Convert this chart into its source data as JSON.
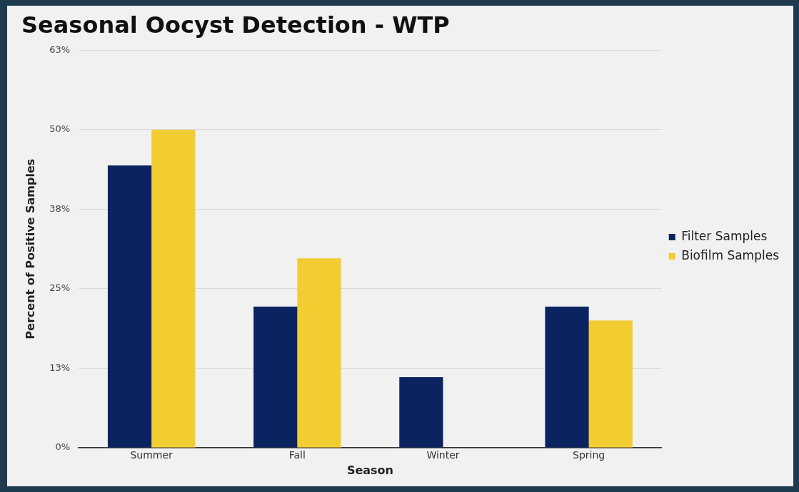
{
  "chart_data": {
    "type": "bar",
    "title": "Seasonal Oocyst Detection - WTP",
    "xlabel": "Season",
    "ylabel": "Percent of Positive Samples",
    "categories": [
      "Summer",
      "Fall",
      "Winter",
      "Spring"
    ],
    "series": [
      {
        "name": "Filter Samples",
        "color": "#0b2461",
        "values": [
          44.4,
          22.2,
          11.1,
          22.2
        ]
      },
      {
        "name": "Biofilm Samples",
        "color": "#f2cd32",
        "values": [
          50,
          29.8,
          0,
          20
        ]
      }
    ],
    "ylim": [
      0,
      62.5
    ],
    "yticks": [
      {
        "value": 0,
        "label": "0%"
      },
      {
        "value": 12.5,
        "label": "13%"
      },
      {
        "value": 25,
        "label": "25%"
      },
      {
        "value": 37.5,
        "label": "38%"
      },
      {
        "value": 50,
        "label": "50%"
      },
      {
        "value": 62.5,
        "label": "63%"
      }
    ],
    "grid": "y",
    "legend": "right"
  }
}
